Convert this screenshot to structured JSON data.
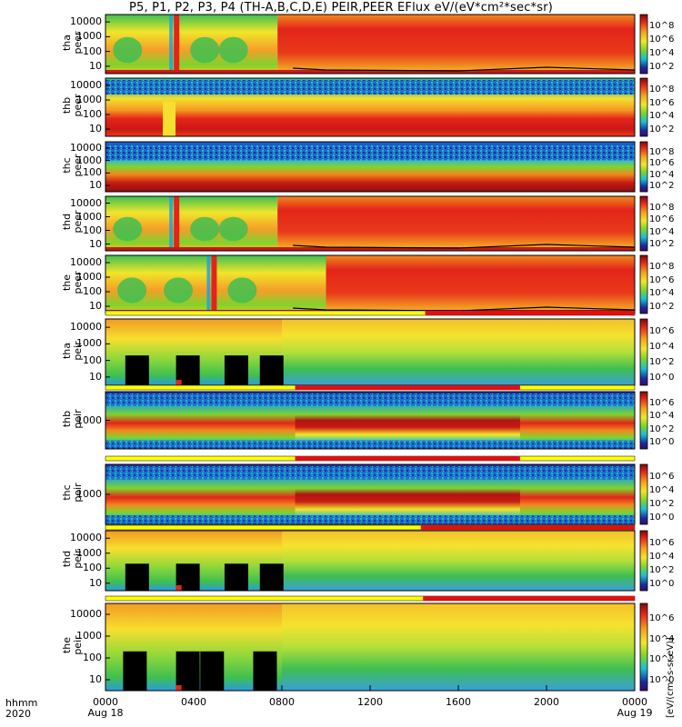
{
  "header": {
    "title": "P5, P1, P2, P3, P4 (TH-A,B,C,D,E) PEIR,PEER EFlux eV/(eV*cm²*sec*sr)"
  },
  "footer": {
    "time_format": "hhmm",
    "year": "2020"
  },
  "colorbar_unit": "[eV/(cm²-s-sr-eV)]",
  "colors": {
    "spectro_hot": "#e4241a",
    "spectro_warm": "#f08a1e",
    "spectro_mid": "#7fd32d",
    "spectro_cool": "#19a0e0",
    "spectro_low": "#1b2a9c",
    "bar_red": "#e01010",
    "bar_yellow": "#ffff00"
  },
  "chart_data": {
    "type": "heatmap",
    "title": "P5, P1, P2, P3, P4 (TH-A,B,C,D,E) PEIR,PEER EFlux eV/(eV*cm²*sec*sr)",
    "x_axis": {
      "ticks": [
        "0000",
        "0400",
        "0800",
        "1200",
        "1600",
        "2000",
        "0000"
      ],
      "tick_hours": [
        0,
        4,
        8,
        12,
        16,
        20,
        24
      ],
      "date_labels": [
        "Aug 18",
        "Aug 19"
      ],
      "range_hours": [
        0,
        24
      ]
    },
    "colorbar": {
      "scale": "log",
      "tick_labels_full": [
        "10^2",
        "10^4",
        "10^6",
        "10^8"
      ],
      "tick_labels_ion": [
        "10^0",
        "10^2",
        "10^4",
        "10^6"
      ]
    },
    "panels": [
      {
        "label": "tha\npeer",
        "y_scale": "log",
        "y_ticks": [
          "10000",
          "1000",
          "100",
          "10"
        ],
        "flag_bar": null
      },
      {
        "label": "thb\npeer",
        "y_scale": "log",
        "y_ticks": [
          "10000",
          "1000",
          "100",
          "10"
        ],
        "flag_bar": null
      },
      {
        "label": "thc\npeer",
        "y_scale": "log",
        "y_ticks": [
          "10000",
          "1000",
          "100",
          "10"
        ],
        "flag_bar": null
      },
      {
        "label": "thd\npeer",
        "y_scale": "log",
        "y_ticks": [
          "10000",
          "1000",
          "100",
          "10"
        ],
        "flag_bar": null
      },
      {
        "label": "the\npeer",
        "y_scale": "log",
        "y_ticks": [
          "10000",
          "1000",
          "100",
          "10"
        ],
        "flag_bar": null
      },
      {
        "label": "tha\npeir",
        "y_scale": "log",
        "y_ticks": [
          "10000",
          "1000",
          "100",
          "10"
        ],
        "flag_bar": {
          "red_start_hour": 14.5,
          "red_end_hour": 24
        }
      },
      {
        "label": "thb\npeir",
        "y_scale": "log",
        "y_ticks": [
          "1000"
        ],
        "flag_bar": {
          "red_start_hour": 8.6,
          "red_end_hour": 18.8
        }
      },
      {
        "label": "thc\npeir",
        "y_scale": "log",
        "y_ticks": [
          "1000"
        ],
        "flag_bar": {
          "red_start_hour": 8.6,
          "red_end_hour": 18.8
        }
      },
      {
        "label": "thd\npeir",
        "y_scale": "log",
        "y_ticks": [
          "10000",
          "1000",
          "100",
          "10"
        ],
        "flag_bar": {
          "red_start_hour": 14.3,
          "red_end_hour": 24
        }
      },
      {
        "label": "the\npeir",
        "y_scale": "log",
        "y_ticks": [
          "10000",
          "1000",
          "100",
          "10"
        ],
        "flag_bar": {
          "red_start_hour": 14.4,
          "red_end_hour": 24
        }
      }
    ]
  }
}
